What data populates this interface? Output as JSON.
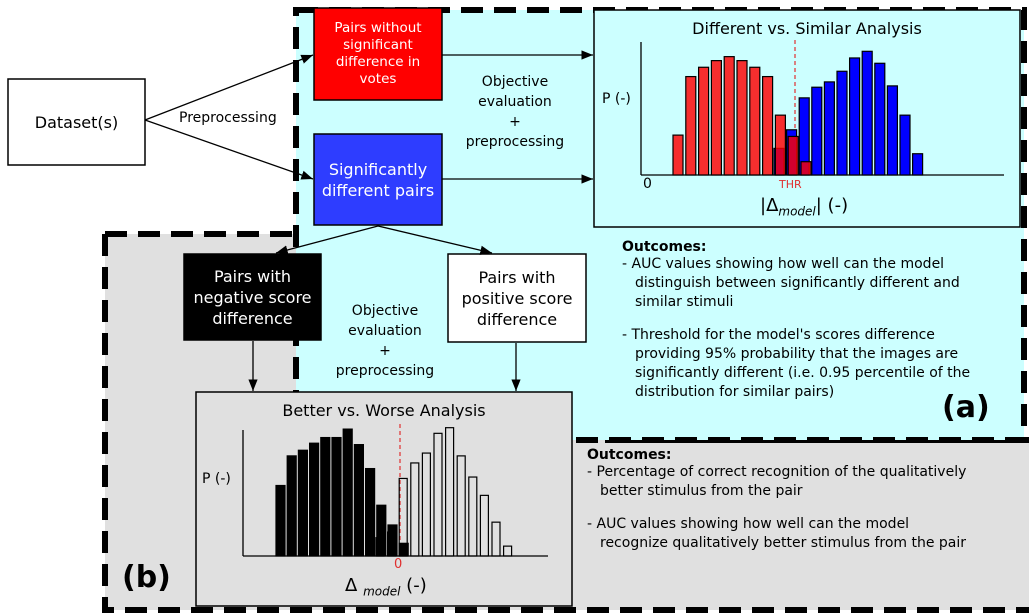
{
  "colors": {
    "panel_a_bg": "#ccffff",
    "panel_b_bg": "#e0e0e0",
    "red": "#ff0000",
    "blue": "#0000ff",
    "black": "#000000",
    "threshold": "#e03030"
  },
  "dataset_box": {
    "label": "Dataset(s)"
  },
  "preprocessing_label": "Preprocessing",
  "nonsig_box": {
    "label": "Pairs without significant difference in votes"
  },
  "sig_box": {
    "label": "Significantly different pairs"
  },
  "eval_a": {
    "line1": "Objective",
    "line2": "evaluation",
    "line3": "+",
    "line4": "preprocessing"
  },
  "neg_box": {
    "label": "Pairs with negative score difference"
  },
  "pos_box": {
    "label": "Pairs with positive score difference"
  },
  "eval_b": {
    "line1": "Objective",
    "line2": "evaluation",
    "line3": "+",
    "line4": "preprocessing"
  },
  "panel_a": {
    "tag": "(a)"
  },
  "panel_b": {
    "tag": "(b)"
  },
  "outcomes_a": {
    "title": "Outcomes:",
    "items": [
      "- AUC values showing how well can the model distinguish between significantly different and similar stimuli",
      "- Threshold for the model's scores difference providing 95% probability that the images are significantly different (i.e. 0.95 percentile of the distribution for similar pairs)"
    ]
  },
  "outcomes_b": {
    "title": "Outcomes:",
    "items": [
      "- Percentage of correct recognition of the qualitatively better stimulus from the pair",
      "- AUC values showing how well can the model recognize qualitatively better stimulus from the pair"
    ]
  },
  "chart_a": {
    "title": "Different vs. Similar Analysis",
    "ylabel": "P (-)",
    "origin_label": "0",
    "threshold_label": "THR",
    "xlabel_delta": "|Δ",
    "xlabel_sub": "model",
    "xlabel_tail": "| (-)",
    "red_values": [
      0.3,
      0.74,
      0.81,
      0.86,
      0.89,
      0.86,
      0.81,
      0.74,
      0.45,
      0.29,
      0.1
    ],
    "blue_values": [
      0.2,
      0.34,
      0.58,
      0.66,
      0.7,
      0.78,
      0.88,
      0.93,
      0.84,
      0.67,
      0.45,
      0.16
    ]
  },
  "chart_b": {
    "title": "Better vs. Worse Analysis",
    "ylabel": "P (-)",
    "zero_label": "0",
    "xlabel_delta": "Δ",
    "xlabel_sub": "model",
    "xlabel_tail": "(-)",
    "black_values": [
      0.5,
      0.71,
      0.75,
      0.8,
      0.84,
      0.84,
      0.9,
      0.79,
      0.62,
      0.36,
      0.22,
      0.09
    ],
    "white_values": [
      0.13,
      0.17,
      0.55,
      0.66,
      0.73,
      0.87,
      0.91,
      0.71,
      0.56,
      0.43,
      0.24,
      0.07
    ]
  }
}
